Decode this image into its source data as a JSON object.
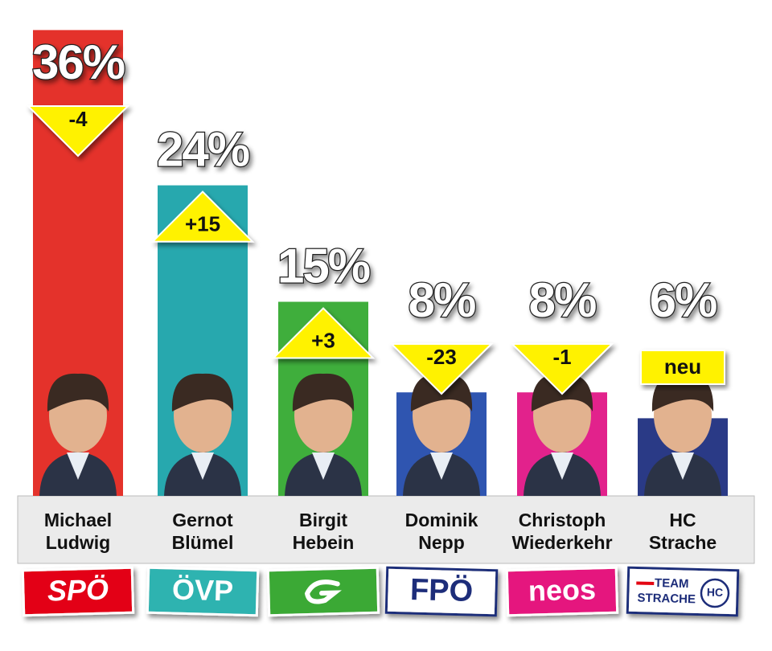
{
  "chart_data": {
    "type": "bar",
    "categories": [
      [
        "Michael",
        "Ludwig"
      ],
      [
        "Gernot",
        "Blümel"
      ],
      [
        "Birgit",
        "Hebein"
      ],
      [
        "Dominik",
        "Nepp"
      ],
      [
        "Christoph",
        "Wiederkehr"
      ],
      [
        "HC",
        "Strache"
      ]
    ],
    "values": [
      36,
      24,
      15,
      8,
      8,
      6
    ],
    "value_labels": [
      "36%",
      "24%",
      "15%",
      "8%",
      "8%",
      "6%"
    ],
    "changes": [
      "-4",
      "+15",
      "+3",
      "-23",
      "-1",
      "neu"
    ],
    "parties": [
      [
        "SPÖ"
      ],
      [
        "ÖVP"
      ],
      [],
      [
        "FPÖ"
      ],
      [
        "neos"
      ],
      [
        "TEAM",
        "STRACHE",
        "HC"
      ]
    ],
    "colors": [
      "#e4322b",
      "#27a8ae",
      "#3fae3c",
      "#2f55b0",
      "#e2228c",
      "#2a3a86"
    ],
    "party_colors": [
      "#e30613",
      "#2fb3b0",
      "#3aa935",
      "#ffffff",
      "#e5177e",
      "#ffffff"
    ]
  }
}
